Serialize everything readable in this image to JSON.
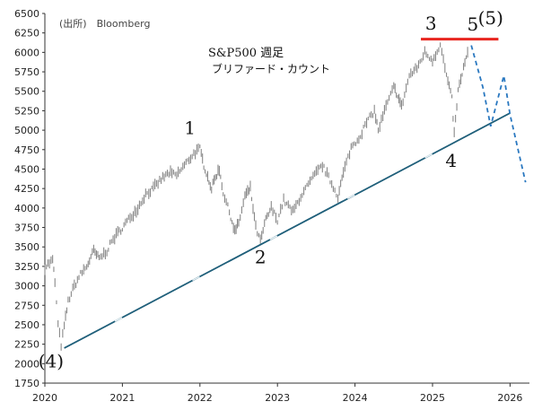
{
  "chart_data": {
    "type": "line",
    "title": "S&P500 週足",
    "subtitle": "ブリファード・カウント",
    "source": "(出所)　Bloomberg",
    "xlabel": "",
    "ylabel": "",
    "x_ticks": [
      "2020",
      "2021",
      "2022",
      "2023",
      "2024",
      "2025",
      "2026"
    ],
    "y_ticks": [
      "1750",
      "2000",
      "2250",
      "2500",
      "2750",
      "3000",
      "3250",
      "3500",
      "3750",
      "4000",
      "4250",
      "4500",
      "4750",
      "5000",
      "5250",
      "5500",
      "5750",
      "6000",
      "6250",
      "6500"
    ],
    "xlim": [
      2020.0,
      2026.25
    ],
    "ylim": [
      1750,
      6500
    ],
    "grid": false,
    "series": [
      {
        "style": "weekly-bars",
        "color": "#888888",
        "points": [
          [
            2020.0,
            3240
          ],
          [
            2020.1,
            3330
          ],
          [
            2020.13,
            3050
          ],
          [
            2020.17,
            2500
          ],
          [
            2020.21,
            2240
          ],
          [
            2020.25,
            2480
          ],
          [
            2020.3,
            2800
          ],
          [
            2020.38,
            3000
          ],
          [
            2020.46,
            3150
          ],
          [
            2020.54,
            3250
          ],
          [
            2020.63,
            3450
          ],
          [
            2020.7,
            3350
          ],
          [
            2020.8,
            3450
          ],
          [
            2020.88,
            3600
          ],
          [
            2021.0,
            3750
          ],
          [
            2021.1,
            3880
          ],
          [
            2021.2,
            4000
          ],
          [
            2021.3,
            4180
          ],
          [
            2021.4,
            4250
          ],
          [
            2021.5,
            4370
          ],
          [
            2021.6,
            4450
          ],
          [
            2021.7,
            4420
          ],
          [
            2021.8,
            4550
          ],
          [
            2021.92,
            4700
          ],
          [
            2022.0,
            4760
          ],
          [
            2022.05,
            4550
          ],
          [
            2022.1,
            4400
          ],
          [
            2022.15,
            4250
          ],
          [
            2022.2,
            4400
          ],
          [
            2022.25,
            4500
          ],
          [
            2022.3,
            4200
          ],
          [
            2022.38,
            3950
          ],
          [
            2022.45,
            3700
          ],
          [
            2022.5,
            3800
          ],
          [
            2022.58,
            4150
          ],
          [
            2022.65,
            4250
          ],
          [
            2022.72,
            3750
          ],
          [
            2022.78,
            3570
          ],
          [
            2022.85,
            3850
          ],
          [
            2022.92,
            4000
          ],
          [
            2023.0,
            3850
          ],
          [
            2023.08,
            4100
          ],
          [
            2023.2,
            3950
          ],
          [
            2023.3,
            4150
          ],
          [
            2023.4,
            4300
          ],
          [
            2023.5,
            4450
          ],
          [
            2023.58,
            4550
          ],
          [
            2023.68,
            4350
          ],
          [
            2023.78,
            4150
          ],
          [
            2023.85,
            4450
          ],
          [
            2023.95,
            4780
          ],
          [
            2024.05,
            4900
          ],
          [
            2024.15,
            5100
          ],
          [
            2024.25,
            5250
          ],
          [
            2024.3,
            5000
          ],
          [
            2024.4,
            5300
          ],
          [
            2024.5,
            5550
          ],
          [
            2024.55,
            5450
          ],
          [
            2024.6,
            5300
          ],
          [
            2024.7,
            5700
          ],
          [
            2024.8,
            5800
          ],
          [
            2024.9,
            6000
          ],
          [
            2025.0,
            5900
          ],
          [
            2025.1,
            6100
          ],
          [
            2025.18,
            5700
          ],
          [
            2025.25,
            5400
          ],
          [
            2025.28,
            4950
          ],
          [
            2025.33,
            5500
          ],
          [
            2025.4,
            5800
          ],
          [
            2025.47,
            6050
          ]
        ]
      },
      {
        "name": "support",
        "style": "solid-line",
        "color": "#1f5f7a",
        "points": [
          [
            2020.25,
            2200
          ],
          [
            2026.0,
            5220
          ]
        ]
      },
      {
        "name": "resistance",
        "style": "solid-line",
        "color": "#e8251f",
        "points": [
          [
            2024.85,
            6170
          ],
          [
            2025.85,
            6170
          ]
        ]
      },
      {
        "name": "projection",
        "style": "dashed-line",
        "color": "#2a78c0",
        "points": [
          [
            2025.5,
            6090
          ],
          [
            2025.65,
            5550
          ],
          [
            2025.75,
            5050
          ],
          [
            2025.92,
            5700
          ],
          [
            2026.0,
            5200
          ],
          [
            2026.2,
            4330
          ]
        ]
      }
    ],
    "annotations": [
      {
        "text": "(4)",
        "x": 2020.08,
        "y": 1950
      },
      {
        "text": "1",
        "x": 2021.87,
        "y": 4950
      },
      {
        "text": "2",
        "x": 2022.78,
        "y": 3290
      },
      {
        "text": "3",
        "x": 2024.98,
        "y": 6290
      },
      {
        "text": "4",
        "x": 2025.24,
        "y": 4530
      },
      {
        "text": "5",
        "x": 2025.52,
        "y": 6280
      },
      {
        "text": "(5)",
        "x": 2025.75,
        "y": 6360
      }
    ]
  }
}
